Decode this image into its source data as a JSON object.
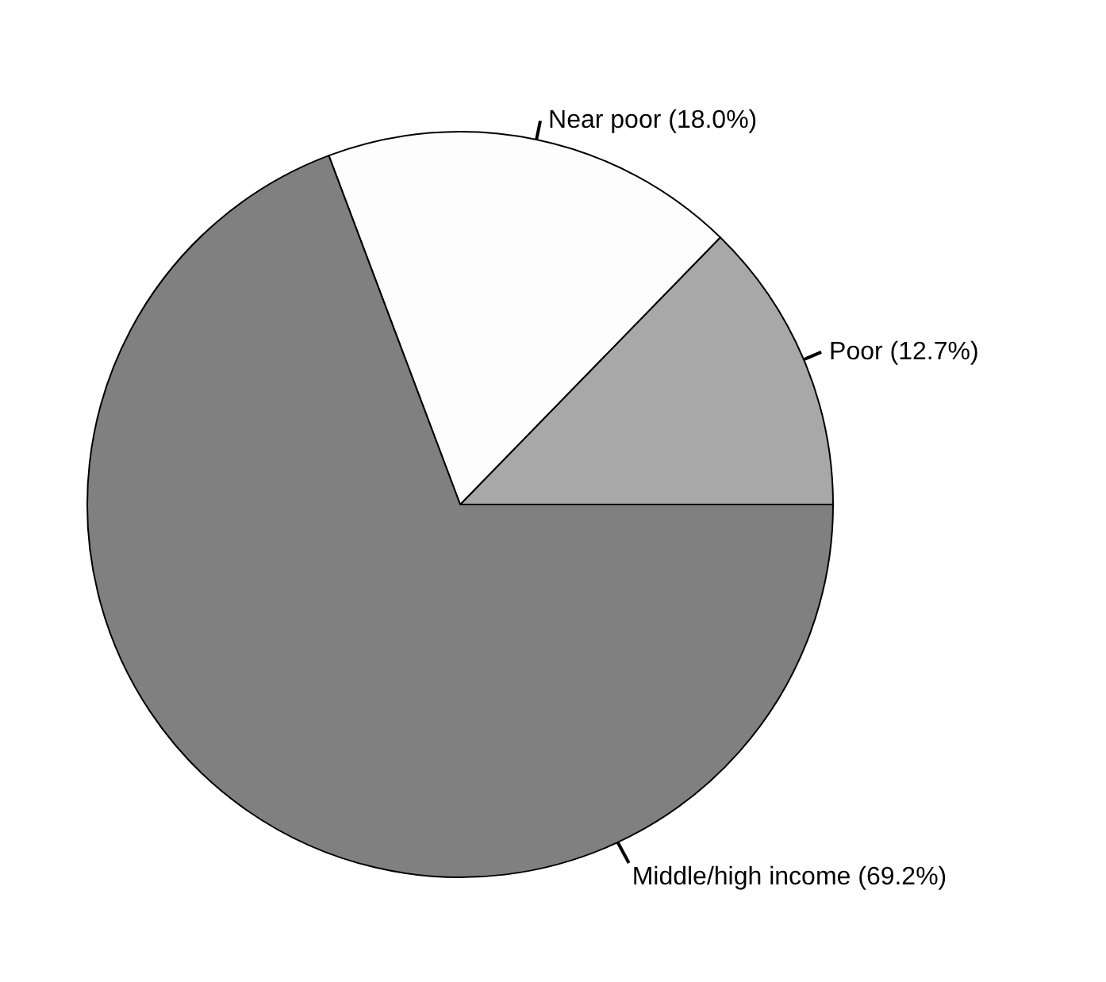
{
  "chart_data": {
    "type": "pie",
    "categories": [
      "Poor (12.7%)",
      "Near poor (18.0%)",
      "Middle/high income (69.2%)"
    ],
    "values": [
      12.7,
      18.0,
      69.2
    ],
    "colors": [
      "#a8a8a8",
      "#fdfdfd",
      "#808080"
    ],
    "legend": false
  }
}
